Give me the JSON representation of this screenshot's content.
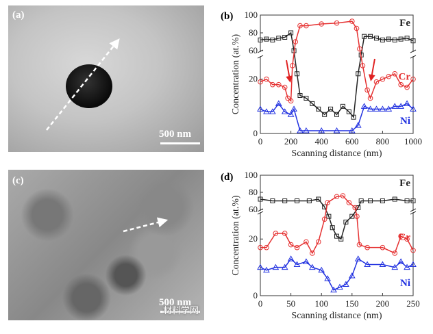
{
  "panels": {
    "a": {
      "label": "(a)",
      "scale_bar": "500 nm"
    },
    "b": {
      "label": "(b)"
    },
    "c": {
      "label": "(c)",
      "scale_bar": "500 nm"
    },
    "d": {
      "label": "(d)"
    }
  },
  "watermark": "材料学网",
  "chart_data": [
    {
      "type": "line",
      "panel": "b",
      "xlabel": "Scanning distance (nm)",
      "ylabel": "Concentration (at.%)",
      "xlim": [
        0,
        1000
      ],
      "xticks": [
        "0",
        "200",
        "400",
        "600",
        "800",
        "1000"
      ],
      "ylim": [
        0,
        100
      ],
      "y_axis_break": [
        28,
        60
      ],
      "yticks": [
        "0",
        "20",
        "60",
        "80",
        "100"
      ],
      "annotations": [
        "red arrows near 180 nm and 720 nm pointing to Cr depletion"
      ],
      "series": [
        {
          "name": "Fe",
          "color": "#222222",
          "marker": "square",
          "x": [
            0,
            40,
            80,
            120,
            160,
            200,
            220,
            240,
            260,
            300,
            340,
            380,
            420,
            460,
            500,
            540,
            580,
            610,
            640,
            660,
            680,
            720,
            760,
            800,
            840,
            880,
            920,
            960,
            1000
          ],
          "y": [
            72,
            73,
            72,
            74,
            75,
            80,
            60,
            22,
            14,
            13,
            11,
            9,
            7,
            9,
            7,
            10,
            8,
            6,
            22,
            40,
            76,
            76,
            74,
            72,
            73,
            72,
            73,
            74,
            71
          ]
        },
        {
          "name": "Cr",
          "color": "#e53030",
          "marker": "circle",
          "x": [
            0,
            40,
            80,
            120,
            160,
            180,
            200,
            210,
            230,
            260,
            300,
            400,
            500,
            600,
            630,
            650,
            670,
            700,
            720,
            760,
            800,
            840,
            880,
            920,
            960,
            1000
          ],
          "y": [
            19,
            20,
            18,
            18,
            17,
            13,
            12,
            25,
            70,
            88,
            88,
            90,
            91,
            93,
            85,
            62,
            25,
            16,
            13,
            19,
            20,
            21,
            22,
            18,
            17,
            20
          ]
        },
        {
          "name": "Ni",
          "color": "#2030e0",
          "marker": "triangle",
          "x": [
            0,
            40,
            80,
            120,
            160,
            200,
            220,
            260,
            300,
            400,
            500,
            600,
            640,
            680,
            720,
            760,
            800,
            840,
            880,
            920,
            960,
            1000
          ],
          "y": [
            9,
            8,
            8,
            11,
            8,
            7,
            9,
            1,
            1,
            1,
            1,
            1,
            3,
            10,
            9,
            9,
            9,
            9,
            10,
            10,
            11,
            9
          ]
        }
      ]
    },
    {
      "type": "line",
      "panel": "d",
      "xlabel": "Scanning distance (nm)",
      "ylabel": "Concentration (at.%)",
      "xlim": [
        0,
        250
      ],
      "xticks": [
        "0",
        "50",
        "100",
        "150",
        "200",
        "250"
      ],
      "ylim": [
        0,
        100
      ],
      "y_axis_break": [
        29,
        60
      ],
      "yticks": [
        "0",
        "20",
        "60",
        "80",
        "100"
      ],
      "series": [
        {
          "name": "Fe",
          "color": "#222222",
          "marker": "square",
          "x": [
            0,
            20,
            40,
            60,
            80,
            95,
            105,
            112,
            118,
            125,
            132,
            140,
            150,
            160,
            165,
            180,
            200,
            220,
            240,
            250
          ],
          "y": [
            72,
            70,
            70,
            70,
            70,
            72,
            63,
            28,
            24,
            21,
            20,
            26,
            28,
            62,
            70,
            70,
            70,
            72,
            70,
            70
          ]
        },
        {
          "name": "Cr",
          "color": "#e53030",
          "marker": "circle",
          "x": [
            0,
            10,
            25,
            40,
            50,
            60,
            75,
            85,
            95,
            105,
            110,
            125,
            135,
            145,
            155,
            158,
            162,
            175,
            200,
            220,
            230,
            240,
            250
          ],
          "y": [
            17,
            17,
            22,
            22,
            18,
            17,
            19,
            15,
            19,
            27,
            68,
            75,
            76,
            68,
            62,
            28,
            18,
            17,
            17,
            15,
            21,
            20,
            16
          ]
        },
        {
          "name": "Ni",
          "color": "#2030e0",
          "marker": "triangle",
          "x": [
            0,
            10,
            25,
            40,
            50,
            60,
            75,
            85,
            100,
            110,
            120,
            130,
            140,
            150,
            160,
            175,
            200,
            220,
            230,
            240,
            250
          ],
          "y": [
            10,
            9,
            10,
            10,
            13,
            11,
            12,
            10,
            9,
            6,
            2,
            3,
            4,
            7,
            13,
            11,
            11,
            10,
            12,
            10,
            11
          ]
        }
      ]
    }
  ]
}
